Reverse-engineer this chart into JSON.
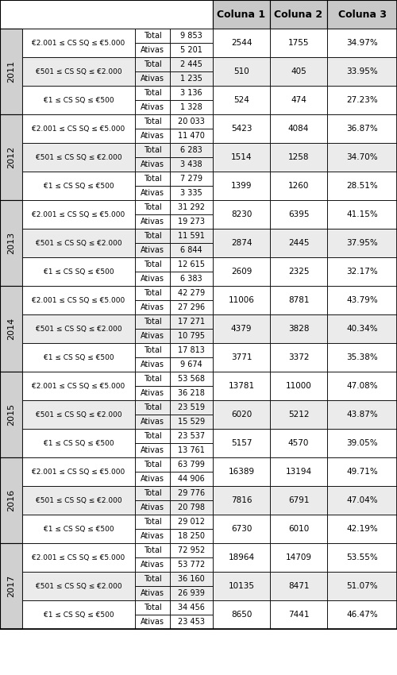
{
  "header": [
    "Coluna 1",
    "Coluna 2",
    "Coluna 3"
  ],
  "years": [
    "2011",
    "2012",
    "2013",
    "2014",
    "2015",
    "2016",
    "2017"
  ],
  "rows": [
    {
      "year": "2011",
      "range": "€2.001 ≤ CS SQ ≤ €5.000",
      "total": "9 853",
      "ativas": "5 201",
      "col1": "2544",
      "col2": "1755",
      "col3": "34.97%"
    },
    {
      "year": "2011",
      "range": "€501 ≤ CS SQ ≤ €2.000",
      "total": "2 445",
      "ativas": "1 235",
      "col1": "510",
      "col2": "405",
      "col3": "33.95%"
    },
    {
      "year": "2011",
      "range": "€1 ≤ CS SQ ≤ €500",
      "total": "3 136",
      "ativas": "1 328",
      "col1": "524",
      "col2": "474",
      "col3": "27.23%"
    },
    {
      "year": "2012",
      "range": "€2.001 ≤ CS SQ ≤ €5.000",
      "total": "20 033",
      "ativas": "11 470",
      "col1": "5423",
      "col2": "4084",
      "col3": "36.87%"
    },
    {
      "year": "2012",
      "range": "€501 ≤ CS SQ ≤ €2.000",
      "total": "6 283",
      "ativas": "3 438",
      "col1": "1514",
      "col2": "1258",
      "col3": "34.70%"
    },
    {
      "year": "2012",
      "range": "€1 ≤ CS SQ ≤ €500",
      "total": "7 279",
      "ativas": "3 335",
      "col1": "1399",
      "col2": "1260",
      "col3": "28.51%"
    },
    {
      "year": "2013",
      "range": "€2.001 ≤ CS SQ ≤ €5.000",
      "total": "31 292",
      "ativas": "19 273",
      "col1": "8230",
      "col2": "6395",
      "col3": "41.15%"
    },
    {
      "year": "2013",
      "range": "€501 ≤ CS SQ ≤ €2.000",
      "total": "11 591",
      "ativas": "6 844",
      "col1": "2874",
      "col2": "2445",
      "col3": "37.95%"
    },
    {
      "year": "2013",
      "range": "€1 ≤ CS SQ ≤ €500",
      "total": "12 615",
      "ativas": "6 383",
      "col1": "2609",
      "col2": "2325",
      "col3": "32.17%"
    },
    {
      "year": "2014",
      "range": "€2.001 ≤ CS SQ ≤ €5.000",
      "total": "42 279",
      "ativas": "27 296",
      "col1": "11006",
      "col2": "8781",
      "col3": "43.79%"
    },
    {
      "year": "2014",
      "range": "€501 ≤ CS SQ ≤ €2.000",
      "total": "17 271",
      "ativas": "10 795",
      "col1": "4379",
      "col2": "3828",
      "col3": "40.34%"
    },
    {
      "year": "2014",
      "range": "€1 ≤ CS SQ ≤ €500",
      "total": "17 813",
      "ativas": "9 674",
      "col1": "3771",
      "col2": "3372",
      "col3": "35.38%"
    },
    {
      "year": "2015",
      "range": "€2.001 ≤ CS SQ ≤ €5.000",
      "total": "53 568",
      "ativas": "36 218",
      "col1": "13781",
      "col2": "11000",
      "col3": "47.08%"
    },
    {
      "year": "2015",
      "range": "€501 ≤ CS SQ ≤ €2.000",
      "total": "23 519",
      "ativas": "15 529",
      "col1": "6020",
      "col2": "5212",
      "col3": "43.87%"
    },
    {
      "year": "2015",
      "range": "€1 ≤ CS SQ ≤ €500",
      "total": "23 537",
      "ativas": "13 761",
      "col1": "5157",
      "col2": "4570",
      "col3": "39.05%"
    },
    {
      "year": "2016",
      "range": "€2.001 ≤ CS SQ ≤ €5.000",
      "total": "63 799",
      "ativas": "44 906",
      "col1": "16389",
      "col2": "13194",
      "col3": "49.71%"
    },
    {
      "year": "2016",
      "range": "€501 ≤ CS SQ ≤ €2.000",
      "total": "29 776",
      "ativas": "20 798",
      "col1": "7816",
      "col2": "6791",
      "col3": "47.04%"
    },
    {
      "year": "2016",
      "range": "€1 ≤ CS SQ ≤ €500",
      "total": "29 012",
      "ativas": "18 250",
      "col1": "6730",
      "col2": "6010",
      "col3": "42.19%"
    },
    {
      "year": "2017",
      "range": "€2.001 ≤ CS SQ ≤ €5.000",
      "total": "72 952",
      "ativas": "53 772",
      "col1": "18964",
      "col2": "14709",
      "col3": "53.55%"
    },
    {
      "year": "2017",
      "range": "€501 ≤ CS SQ ≤ €2.000",
      "total": "36 160",
      "ativas": "26 939",
      "col1": "10135",
      "col2": "8471",
      "col3": "51.07%"
    },
    {
      "year": "2017",
      "range": "€1 ≤ CS SQ ≤ €500",
      "total": "34 456",
      "ativas": "23 453",
      "col1": "8650",
      "col2": "7441",
      "col3": "46.47%"
    }
  ],
  "header_bg": "#c8c8c8",
  "year_bg": "#d0d0d0",
  "white_bg": "#ffffff",
  "alt_bg": "#ebebeb",
  "border_color": "#000000"
}
